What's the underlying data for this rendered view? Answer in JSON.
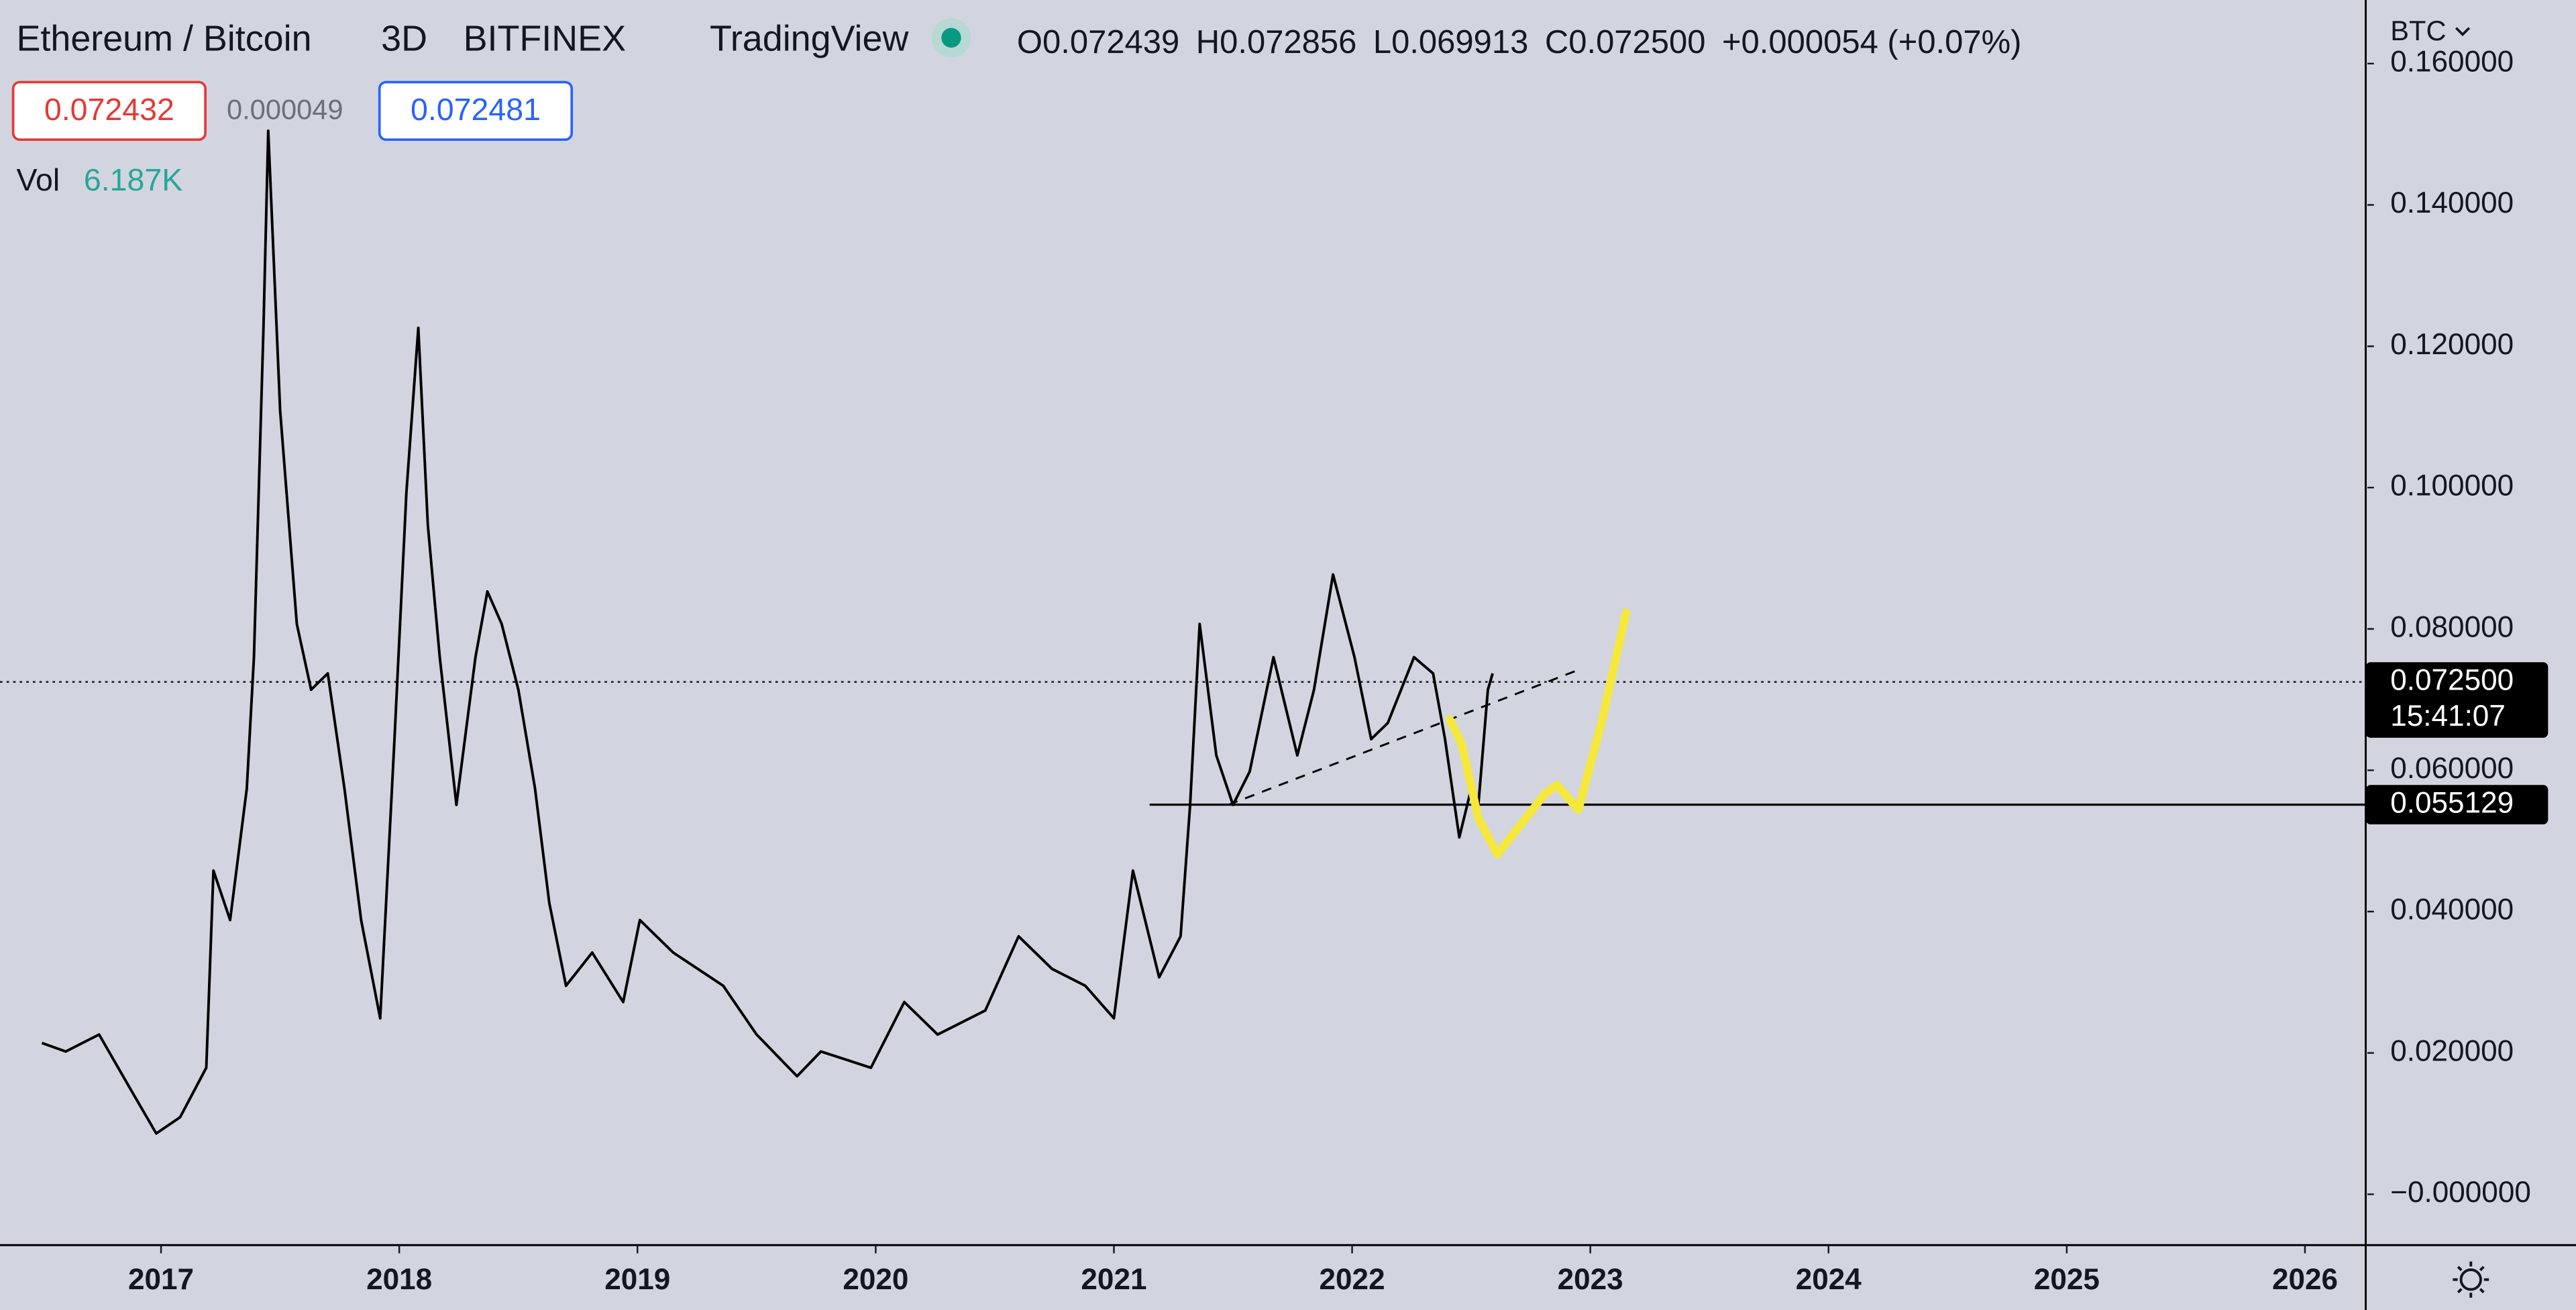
{
  "chart_data": {
    "type": "line",
    "title": "Ethereum / Bitcoin",
    "interval": "3D",
    "exchange": "BITFINEX",
    "source": "TradingView",
    "ohlc": [
      {
        "key": "O",
        "value": "0.072439"
      },
      {
        "key": "H",
        "value": "0.072856"
      },
      {
        "key": "L",
        "value": "0.069913"
      },
      {
        "key": "C",
        "value": "0.072500"
      }
    ],
    "change": "+0.000054 (+0.07%)",
    "bid": "0.072432",
    "spread": "0.000049",
    "ask": "0.072481",
    "volume": {
      "label": "Vol",
      "value": "6.187K"
    },
    "currency": "BTC",
    "color": "#000000",
    "x": [
      2016.5,
      2016.6,
      2016.74,
      2016.88,
      2016.98,
      2017.08,
      2017.19,
      2017.22,
      2017.29,
      2017.36,
      2017.39,
      2017.43,
      2017.45,
      2017.5,
      2017.57,
      2017.63,
      2017.7,
      2017.77,
      2017.84,
      2017.92,
      2017.98,
      2018.03,
      2018.08,
      2018.12,
      2018.17,
      2018.24,
      2018.32,
      2018.37,
      2018.43,
      2018.5,
      2018.57,
      2018.63,
      2018.7,
      2018.81,
      2018.94,
      2019.01,
      2019.15,
      2019.36,
      2019.5,
      2019.67,
      2019.77,
      2019.98,
      2020.12,
      2020.26,
      2020.46,
      2020.6,
      2020.74,
      2020.88,
      2021.0,
      2021.08,
      2021.19,
      2021.28,
      2021.32,
      2021.36,
      2021.43,
      2021.5,
      2021.57,
      2021.67,
      2021.77,
      2021.84,
      2021.92,
      2022.01,
      2022.08,
      2022.15,
      2022.26,
      2022.34,
      2022.39,
      2022.45,
      2022.5,
      2022.53,
      2022.57,
      2022.59
    ],
    "values": [
      0.0214,
      0.0202,
      0.0226,
      0.0144,
      0.0086,
      0.0109,
      0.0179,
      0.0458,
      0.0388,
      0.0574,
      0.076,
      0.1226,
      0.1505,
      0.1109,
      0.0807,
      0.0714,
      0.0737,
      0.0574,
      0.0388,
      0.0249,
      0.0644,
      0.0993,
      0.1226,
      0.0947,
      0.076,
      0.0551,
      0.076,
      0.0853,
      0.0807,
      0.0714,
      0.0574,
      0.0412,
      0.0295,
      0.0342,
      0.0272,
      0.0388,
      0.0342,
      0.0295,
      0.0226,
      0.0167,
      0.0202,
      0.0179,
      0.0272,
      0.0226,
      0.026,
      0.0365,
      0.0319,
      0.0295,
      0.0249,
      0.0458,
      0.0307,
      0.0365,
      0.0551,
      0.0807,
      0.0621,
      0.0551,
      0.0598,
      0.076,
      0.0621,
      0.0714,
      0.0877,
      0.076,
      0.0644,
      0.0667,
      0.076,
      0.0737,
      0.0644,
      0.0505,
      0.0574,
      0.0551,
      0.0714,
      0.0737
    ],
    "last_price": {
      "value": 0.0725,
      "label": "0.072500",
      "countdown": "15:41:07"
    },
    "level": {
      "value": 0.055129,
      "label": "0.055129",
      "x_start": 2021.15
    },
    "trendline": {
      "x": [
        2021.48,
        2022.95
      ],
      "values": [
        0.0551,
        0.0742
      ]
    },
    "projection": {
      "color": "#f5e83a",
      "x": [
        2022.41,
        2022.46,
        2022.53,
        2022.61,
        2022.81,
        2022.86,
        2022.95,
        2023.05,
        2023.15
      ],
      "values": [
        0.0672,
        0.0637,
        0.0532,
        0.0481,
        0.0567,
        0.0579,
        0.0544,
        0.0672,
        0.0823
      ]
    },
    "xlim": [
      2016.324,
      2026.255
    ],
    "xticks": [
      2017,
      2018,
      2019,
      2020,
      2021,
      2022,
      2023,
      2024,
      2025,
      2026
    ],
    "ylim": [
      -0.0072,
      0.169
    ],
    "yticks": [
      {
        "value": 0,
        "label": "−0.000000"
      },
      {
        "value": 0.02,
        "label": "0.020000"
      },
      {
        "value": 0.04,
        "label": "0.040000"
      },
      {
        "value": 0.06,
        "label": "0.060000"
      },
      {
        "value": 0.08,
        "label": "0.080000"
      },
      {
        "value": 0.1,
        "label": "0.100000"
      },
      {
        "value": 0.12,
        "label": "0.120000"
      },
      {
        "value": 0.14,
        "label": "0.140000"
      },
      {
        "value": 0.16,
        "label": "0.160000"
      }
    ]
  }
}
